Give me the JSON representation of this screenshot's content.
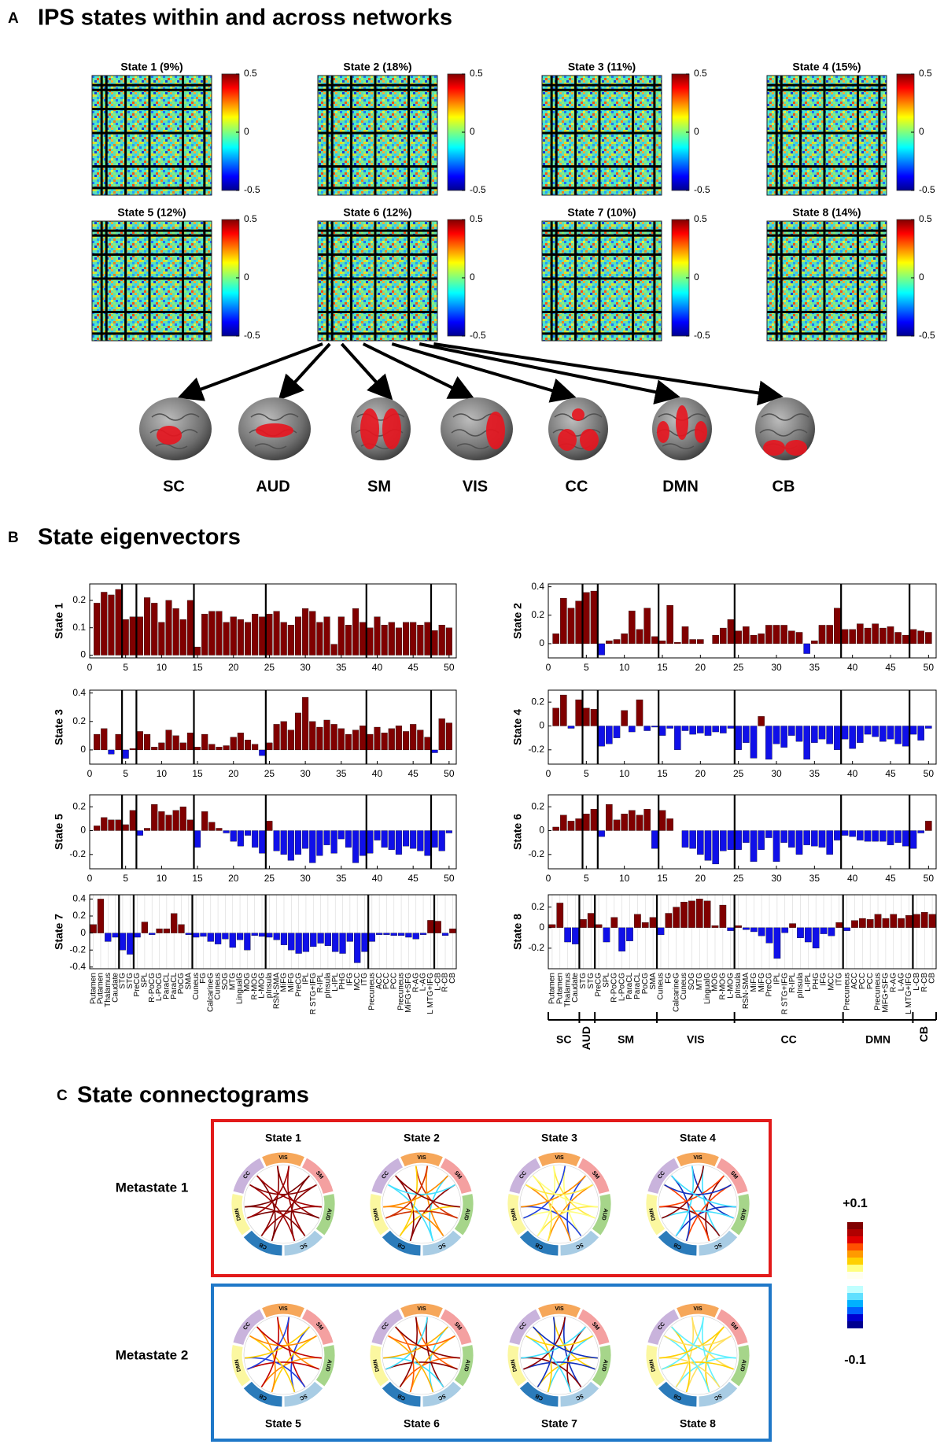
{
  "panel_a": {
    "label": "A",
    "title": "IPS states within and across networks",
    "heatmaps": [
      {
        "title": "State 1 (9%)",
        "clim": [
          -0.5,
          0.5
        ],
        "colorbar_ticks": [
          0.5,
          0,
          -0.5
        ]
      },
      {
        "title": "State 2 (18%)",
        "clim": [
          -0.5,
          0.5
        ],
        "colorbar_ticks": [
          0.5,
          0,
          -0.5
        ]
      },
      {
        "title": "State 3 (11%)",
        "clim": [
          -0.5,
          0.5
        ],
        "colorbar_ticks": [
          0.5,
          0,
          -0.5
        ]
      },
      {
        "title": "State 4 (15%)",
        "clim": [
          -0.5,
          0.5
        ],
        "colorbar_ticks": [
          0.5,
          0,
          -0.5
        ]
      },
      {
        "title": "State 5 (12%)",
        "clim": [
          -0.5,
          0.5
        ],
        "colorbar_ticks": [
          0.5,
          0,
          -0.5
        ]
      },
      {
        "title": "State 6 (12%)",
        "clim": [
          -0.5,
          0.5
        ],
        "colorbar_ticks": [
          0.5,
          0,
          -0.5
        ]
      },
      {
        "title": "State 7 (10%)",
        "clim": [
          -0.5,
          0.5
        ],
        "colorbar_ticks": [
          0.5,
          0,
          -0.5
        ]
      },
      {
        "title": "State 8 (14%)",
        "clim": [
          -0.5,
          0.5
        ],
        "colorbar_ticks": [
          0.5,
          0,
          -0.5
        ]
      }
    ]
  },
  "networks": [
    {
      "label": "SC",
      "start": 1,
      "end": 4
    },
    {
      "label": "AUD",
      "start": 5,
      "end": 6
    },
    {
      "label": "SM",
      "start": 7,
      "end": 14
    },
    {
      "label": "VIS",
      "start": 15,
      "end": 24
    },
    {
      "label": "CC",
      "start": 25,
      "end": 38
    },
    {
      "label": "DMN",
      "start": 39,
      "end": 47
    },
    {
      "label": "CB",
      "start": 48,
      "end": 50
    }
  ],
  "panel_b": {
    "label": "B",
    "title": "State eigenvectors"
  },
  "chart_data": [
    {
      "type": "bar",
      "ylabel": "State 1",
      "color": "#800000",
      "negative_color": "#1010e8",
      "ylim": [
        -0.01,
        0.26
      ],
      "yticks": [
        0,
        0.1,
        0.2
      ],
      "xlim": [
        0,
        51
      ],
      "xticks": [
        0,
        5,
        10,
        15,
        20,
        25,
        30,
        35,
        40,
        45,
        50
      ],
      "x": [
        1,
        2,
        3,
        4,
        5,
        6,
        7,
        8,
        9,
        10,
        11,
        12,
        13,
        14,
        15,
        16,
        17,
        18,
        19,
        20,
        21,
        22,
        23,
        24,
        25,
        26,
        27,
        28,
        29,
        30,
        31,
        32,
        33,
        34,
        35,
        36,
        37,
        38,
        39,
        40,
        41,
        42,
        43,
        44,
        45,
        46,
        47,
        48,
        49,
        50
      ],
      "values": [
        0.19,
        0.23,
        0.22,
        0.24,
        0.13,
        0.14,
        0.14,
        0.21,
        0.19,
        0.12,
        0.2,
        0.17,
        0.13,
        0.2,
        0.03,
        0.15,
        0.16,
        0.16,
        0.12,
        0.14,
        0.13,
        0.12,
        0.15,
        0.14,
        0.15,
        0.16,
        0.12,
        0.11,
        0.14,
        0.17,
        0.16,
        0.12,
        0.14,
        0.04,
        0.14,
        0.11,
        0.17,
        0.12,
        0.1,
        0.14,
        0.11,
        0.12,
        0.1,
        0.12,
        0.12,
        0.11,
        0.12,
        0.09,
        0.11,
        0.1
      ]
    },
    {
      "type": "bar",
      "ylabel": "State 2",
      "color": "#800000",
      "negative_color": "#1010e8",
      "ylim": [
        -0.1,
        0.42
      ],
      "yticks": [
        0,
        0.2,
        0.4
      ],
      "xlim": [
        0,
        51
      ],
      "xticks": [
        0,
        5,
        10,
        15,
        20,
        25,
        30,
        35,
        40,
        45,
        50
      ],
      "x": [
        1,
        2,
        3,
        4,
        5,
        6,
        7,
        8,
        9,
        10,
        11,
        12,
        13,
        14,
        15,
        16,
        17,
        18,
        19,
        20,
        21,
        22,
        23,
        24,
        25,
        26,
        27,
        28,
        29,
        30,
        31,
        32,
        33,
        34,
        35,
        36,
        37,
        38,
        39,
        40,
        41,
        42,
        43,
        44,
        45,
        46,
        47,
        48,
        49,
        50
      ],
      "values": [
        0.07,
        0.32,
        0.25,
        0.3,
        0.36,
        0.37,
        -0.08,
        0.02,
        0.03,
        0.07,
        0.23,
        0.1,
        0.25,
        0.05,
        0.02,
        0.27,
        0.01,
        0.12,
        0.03,
        0.03,
        0,
        0.06,
        0.11,
        0.17,
        0.09,
        0.12,
        0.06,
        0.07,
        0.13,
        0.13,
        0.13,
        0.09,
        0.08,
        -0.07,
        0.02,
        0.13,
        0.13,
        0.25,
        0.1,
        0.1,
        0.14,
        0.11,
        0.14,
        0.11,
        0.12,
        0.08,
        0.06,
        0.1,
        0.09,
        0.08
      ]
    },
    {
      "type": "bar",
      "ylabel": "State 3",
      "color": "#800000",
      "negative_color": "#1010e8",
      "ylim": [
        -0.1,
        0.42
      ],
      "yticks": [
        0,
        0.2,
        0.4
      ],
      "xlim": [
        0,
        51
      ],
      "xticks": [
        0,
        5,
        10,
        15,
        20,
        25,
        30,
        35,
        40,
        45,
        50
      ],
      "x": [
        1,
        2,
        3,
        4,
        5,
        6,
        7,
        8,
        9,
        10,
        11,
        12,
        13,
        14,
        15,
        16,
        17,
        18,
        19,
        20,
        21,
        22,
        23,
        24,
        25,
        26,
        27,
        28,
        29,
        30,
        31,
        32,
        33,
        34,
        35,
        36,
        37,
        38,
        39,
        40,
        41,
        42,
        43,
        44,
        45,
        46,
        47,
        48,
        49,
        50
      ],
      "values": [
        0.11,
        0.15,
        -0.03,
        0.11,
        -0.06,
        0.01,
        0.13,
        0.11,
        0.02,
        0.05,
        0.14,
        0.1,
        0.05,
        0.12,
        0.02,
        0.11,
        0.04,
        0.02,
        0.03,
        0.09,
        0.12,
        0.07,
        0.04,
        -0.04,
        0.05,
        0.18,
        0.2,
        0.14,
        0.26,
        0.37,
        0.2,
        0.16,
        0.21,
        0.18,
        0.15,
        0.11,
        0.14,
        0.17,
        0.11,
        0.16,
        0.12,
        0.15,
        0.17,
        0.13,
        0.18,
        0.14,
        0.09,
        -0.02,
        0.22,
        0.19
      ]
    },
    {
      "type": "bar",
      "ylabel": "State 4",
      "color": "#800000",
      "negative_color": "#1010e8",
      "ylim": [
        -0.32,
        0.3
      ],
      "yticks": [
        -0.2,
        0,
        0.2
      ],
      "xlim": [
        0,
        51
      ],
      "xticks": [
        0,
        5,
        10,
        15,
        20,
        25,
        30,
        35,
        40,
        45,
        50
      ],
      "x": [
        1,
        2,
        3,
        4,
        5,
        6,
        7,
        8,
        9,
        10,
        11,
        12,
        13,
        14,
        15,
        16,
        17,
        18,
        19,
        20,
        21,
        22,
        23,
        24,
        25,
        26,
        27,
        28,
        29,
        30,
        31,
        32,
        33,
        34,
        35,
        36,
        37,
        38,
        39,
        40,
        41,
        42,
        43,
        44,
        45,
        46,
        47,
        48,
        49,
        50
      ],
      "values": [
        0.15,
        0.26,
        -0.02,
        0.22,
        0.15,
        0.14,
        -0.17,
        -0.15,
        -0.1,
        0.13,
        -0.05,
        0.22,
        -0.04,
        -0.01,
        -0.08,
        -0.02,
        -0.2,
        -0.04,
        -0.07,
        -0.06,
        -0.08,
        -0.05,
        -0.06,
        -0.02,
        -0.2,
        -0.14,
        -0.27,
        0.08,
        -0.28,
        -0.15,
        -0.18,
        -0.08,
        -0.13,
        -0.28,
        -0.14,
        -0.11,
        -0.15,
        -0.2,
        -0.11,
        -0.19,
        -0.14,
        -0.07,
        -0.09,
        -0.13,
        -0.11,
        -0.15,
        -0.17,
        -0.07,
        -0.12,
        -0.02
      ]
    },
    {
      "type": "bar",
      "ylabel": "State 5",
      "color": "#800000",
      "negative_color": "#1010e8",
      "ylim": [
        -0.32,
        0.3
      ],
      "yticks": [
        -0.2,
        0,
        0.2
      ],
      "xlim": [
        0,
        51
      ],
      "xticks": [
        0,
        5,
        10,
        15,
        20,
        25,
        30,
        35,
        40,
        45,
        50
      ],
      "x": [
        1,
        2,
        3,
        4,
        5,
        6,
        7,
        8,
        9,
        10,
        11,
        12,
        13,
        14,
        15,
        16,
        17,
        18,
        19,
        20,
        21,
        22,
        23,
        24,
        25,
        26,
        27,
        28,
        29,
        30,
        31,
        32,
        33,
        34,
        35,
        36,
        37,
        38,
        39,
        40,
        41,
        42,
        43,
        44,
        45,
        46,
        47,
        48,
        49,
        50
      ],
      "values": [
        0.04,
        0.11,
        0.09,
        0.09,
        0.05,
        0.17,
        -0.04,
        0.02,
        0.22,
        0.16,
        0.13,
        0.17,
        0.2,
        0.09,
        -0.14,
        0.16,
        0.07,
        0.02,
        -0.02,
        -0.09,
        -0.13,
        -0.04,
        -0.14,
        -0.19,
        0.08,
        -0.17,
        -0.2,
        -0.25,
        -0.2,
        -0.15,
        -0.27,
        -0.21,
        -0.12,
        -0.19,
        -0.07,
        -0.14,
        -0.27,
        -0.21,
        -0.19,
        -0.08,
        -0.14,
        -0.16,
        -0.2,
        -0.13,
        -0.15,
        -0.17,
        -0.21,
        -0.14,
        -0.17,
        -0.02
      ]
    },
    {
      "type": "bar",
      "ylabel": "State 6",
      "color": "#800000",
      "negative_color": "#1010e8",
      "ylim": [
        -0.32,
        0.3
      ],
      "yticks": [
        -0.2,
        0,
        0.2
      ],
      "xlim": [
        0,
        51
      ],
      "xticks": [
        0,
        5,
        10,
        15,
        20,
        25,
        30,
        35,
        40,
        45,
        50
      ],
      "x": [
        1,
        2,
        3,
        4,
        5,
        6,
        7,
        8,
        9,
        10,
        11,
        12,
        13,
        14,
        15,
        16,
        17,
        18,
        19,
        20,
        21,
        22,
        23,
        24,
        25,
        26,
        27,
        28,
        29,
        30,
        31,
        32,
        33,
        34,
        35,
        36,
        37,
        38,
        39,
        40,
        41,
        42,
        43,
        44,
        45,
        46,
        47,
        48,
        49,
        50
      ],
      "values": [
        0.03,
        0.13,
        0.08,
        0.1,
        0.14,
        0.18,
        -0.05,
        0.22,
        0.09,
        0.14,
        0.17,
        0.13,
        0.18,
        -0.15,
        0.17,
        0.1,
        0,
        -0.14,
        -0.15,
        -0.2,
        -0.25,
        -0.28,
        -0.17,
        -0.16,
        -0.16,
        -0.1,
        -0.26,
        -0.16,
        -0.06,
        -0.26,
        -0.1,
        -0.14,
        -0.2,
        -0.12,
        -0.13,
        -0.14,
        -0.2,
        -0.08,
        -0.04,
        -0.05,
        -0.08,
        -0.09,
        -0.09,
        -0.09,
        -0.12,
        -0.1,
        -0.13,
        -0.15,
        -0.02,
        0.08
      ]
    },
    {
      "type": "bar",
      "ylabel": "State 7",
      "color": "#800000",
      "negative_color": "#1010e8",
      "ylim": [
        -0.42,
        0.45
      ],
      "yticks": [
        -0.4,
        -0.2,
        0,
        0.2,
        0.4
      ],
      "categories": [
        "Putamen",
        "Putamen",
        "Thalamus",
        "Caudate",
        "STG",
        "STG",
        "PreCG",
        "SPL",
        "R-PoCG",
        "L-PoCG",
        "ParaCL",
        "ParaCL",
        "PoCG",
        "SMA",
        "Cuneus",
        "FG",
        "CalcarineG",
        "Cuneus",
        "SOG",
        "MTG",
        "LingualG",
        "MOG",
        "R-MOG",
        "L-MOG",
        "pInsula",
        "RSN-SMA",
        "MiFG",
        "MiFG",
        "PreCG",
        "IPL",
        "R STG+IFG",
        "R-IPL",
        "pInsula",
        "L-IPL",
        "PHG",
        "IFG",
        "MCC",
        "ITG",
        "Precuneus",
        "ACC",
        "PCC",
        "PCC",
        "Precuneus",
        "MiFG+SFG",
        "R-AG",
        "L-AG",
        "L MTG+IFG",
        "L-CB",
        "R-CB",
        "CB"
      ],
      "values": [
        0.1,
        0.4,
        -0.1,
        -0.05,
        -0.2,
        -0.25,
        -0.05,
        0.13,
        -0.02,
        0.05,
        0.05,
        0.23,
        0.1,
        -0.02,
        -0.05,
        -0.04,
        -0.1,
        -0.13,
        -0.07,
        -0.17,
        -0.08,
        -0.2,
        -0.03,
        -0.04,
        -0.05,
        -0.08,
        -0.14,
        -0.2,
        -0.24,
        -0.22,
        -0.16,
        -0.12,
        -0.15,
        -0.22,
        -0.24,
        -0.1,
        -0.35,
        -0.22,
        -0.1,
        -0.02,
        -0.02,
        -0.03,
        -0.03,
        -0.05,
        -0.07,
        -0.02,
        0.15,
        0.14,
        -0.03,
        0.05
      ]
    },
    {
      "type": "bar",
      "ylabel": "State 8",
      "color": "#800000",
      "negative_color": "#1010e8",
      "ylim": [
        -0.4,
        0.32
      ],
      "yticks": [
        -0.2,
        0,
        0.2
      ],
      "categories": [
        "Putamen",
        "Putamen",
        "Thalamus",
        "Caudate",
        "STG",
        "STG",
        "PreCG",
        "SPL",
        "R-PoCG",
        "L-PoCG",
        "ParaCL",
        "ParaCL",
        "PoCG",
        "SMA",
        "Cuneus",
        "FG",
        "CalcarineG",
        "Cuneus",
        "SOG",
        "MTG",
        "LingualG",
        "MOG",
        "R-MOG",
        "L-MOG",
        "pInsula",
        "RSN-SMA",
        "MiFG",
        "MiFG",
        "PreCG",
        "IPL",
        "R STG+IFG",
        "R-IPL",
        "pInsula",
        "L-IPL",
        "PHG",
        "IFG",
        "MCC",
        "ITG",
        "Precuneus",
        "ACC",
        "PCC",
        "PCC",
        "Precuneus",
        "MiFG+SFG",
        "R-AG",
        "L-AG",
        "L MTG+IFG",
        "L-CB",
        "R-CB",
        "CB"
      ],
      "values": [
        0.03,
        0.24,
        -0.14,
        -0.16,
        0.08,
        0.14,
        0.03,
        -0.14,
        0.1,
        -0.23,
        -0.13,
        0.13,
        0.05,
        0.1,
        -0.07,
        0.14,
        0.2,
        0.25,
        0.26,
        0.28,
        0.26,
        0.02,
        0.22,
        -0.03,
        0.02,
        -0.02,
        -0.04,
        -0.08,
        -0.15,
        -0.3,
        -0.05,
        0.04,
        -0.1,
        -0.14,
        -0.2,
        -0.06,
        -0.08,
        0.05,
        -0.03,
        0.07,
        0.09,
        0.08,
        0.13,
        0.09,
        0.13,
        0.09,
        0.12,
        0.13,
        0.15,
        0.13
      ]
    }
  ],
  "panel_c": {
    "label": "C",
    "title": "State connectograms",
    "states": [
      "State 1",
      "State 2",
      "State 3",
      "State 4",
      "State 5",
      "State 6",
      "State 7",
      "State 8"
    ],
    "metastates": [
      "Metastate 1",
      "Metastate 2"
    ],
    "colorbar_labels": [
      "+0.1",
      "-0.1"
    ]
  }
}
